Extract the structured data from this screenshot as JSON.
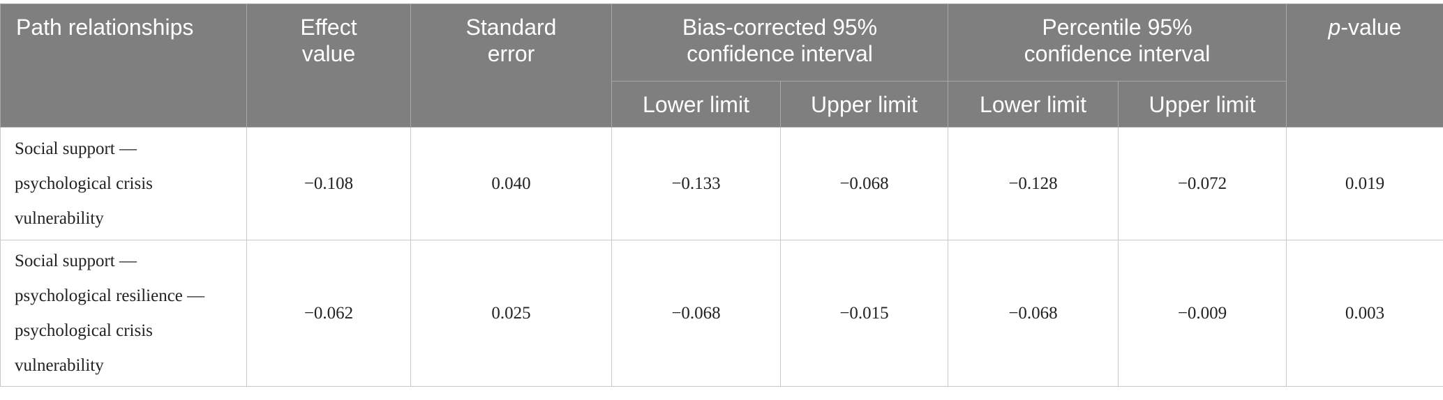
{
  "table": {
    "header": {
      "path": "Path relationships",
      "effect": "Effect value",
      "se": "Standard error",
      "bc": "Bias-corrected 95% confidence interval",
      "pc": "Percentile 95% confidence interval",
      "p_italic": "p",
      "p_rest": "-value",
      "lower": "Lower limit",
      "upper": "Upper limit"
    },
    "rows": [
      [
        "Social support — psychological crisis vulnerability",
        "−0.108",
        "0.040",
        "−0.133",
        "−0.068",
        "−0.128",
        "−0.072",
        "0.019"
      ],
      [
        "Social support — psychological resilience — psychological crisis vulnerability",
        "−0.062",
        "0.025",
        "−0.068",
        "−0.015",
        "−0.068",
        "−0.009",
        "0.003"
      ]
    ]
  }
}
